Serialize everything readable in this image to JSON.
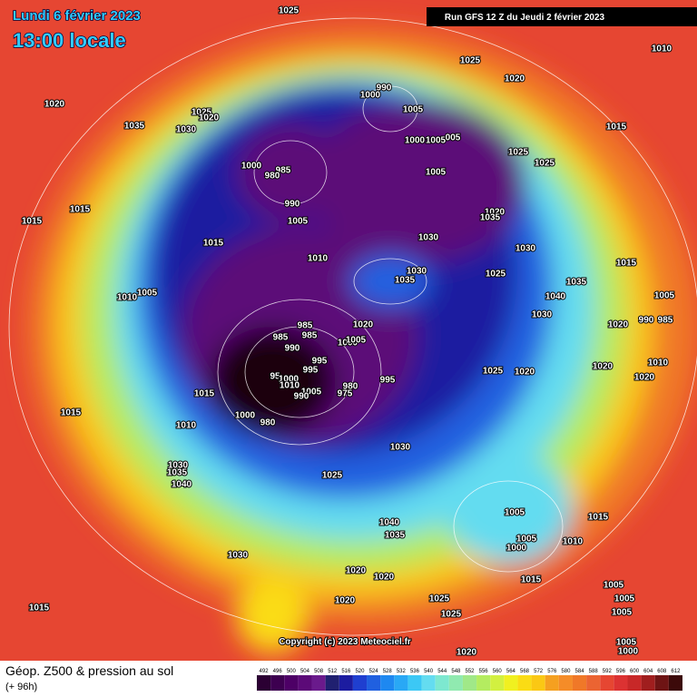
{
  "header": {
    "date": "Lundi 6 février 2023",
    "time": "13:00 locale",
    "run": "Run GFS 12 Z du Jeudi 2 février 2023"
  },
  "copyright": "Copyright (c) 2023 Meteociel.fr",
  "footer": {
    "title": "Géop. Z500 & pression au sol",
    "subtitle": "(+ 96h)"
  },
  "labels": [
    "1025",
    "1010",
    "1020",
    "1035",
    "1025",
    "1020",
    "1030",
    "1025",
    "1020",
    "990",
    "1000",
    "1005",
    "1000",
    "1005",
    "005",
    "1015",
    "1025",
    "1025",
    "1000",
    "985",
    "980",
    "1005",
    "990",
    "1005",
    "1015",
    "1015",
    "1020",
    "1035",
    "1015",
    "1030",
    "1030",
    "1010",
    "1030",
    "1035",
    "1025",
    "1015",
    "1005",
    "1010",
    "1040",
    "1035",
    "1030",
    "1005",
    "985",
    "990",
    "1020",
    "985",
    "985",
    "985",
    "1020",
    "1000",
    "1005",
    "990",
    "995",
    "995",
    "1025",
    "1020",
    "1020",
    "1010",
    "1020",
    "95",
    "1000",
    "1010",
    "1005",
    "980",
    "975",
    "990",
    "995",
    "1015",
    "1015",
    "1000",
    "980",
    "1010",
    "1030",
    "1030",
    "1035",
    "1040",
    "1025",
    "1005",
    "1015",
    "1040",
    "1035",
    "1005",
    "1000",
    "1010",
    "1030",
    "1020",
    "1020",
    "1015",
    "1005",
    "1005",
    "1015",
    "1025",
    "1020",
    "1025",
    "1005",
    "1005",
    "1000",
    "1020"
  ],
  "colorbar": {
    "values": [
      492,
      496,
      500,
      504,
      508,
      512,
      516,
      520,
      524,
      528,
      532,
      536,
      540,
      544,
      548,
      552,
      556,
      560,
      564,
      568,
      572,
      576,
      580,
      584,
      588,
      592,
      596,
      600,
      604,
      608,
      612
    ],
    "colors": [
      "#2b0033",
      "#3d0050",
      "#4d0066",
      "#5c0a78",
      "#6a1a8c",
      "#202070",
      "#1c1ca0",
      "#1f3fd0",
      "#2060e0",
      "#1e88f0",
      "#29a8f5",
      "#3cc8f5",
      "#64dcf0",
      "#7de8d0",
      "#90eab0",
      "#a0e888",
      "#b4ec60",
      "#d2f040",
      "#f0f020",
      "#fadc14",
      "#fac814",
      "#f5a020",
      "#f58c28",
      "#f07828",
      "#eb6432",
      "#e64632",
      "#dc3232",
      "#c82828",
      "#a01e1e",
      "#6e1414",
      "#3c0a0a"
    ]
  }
}
